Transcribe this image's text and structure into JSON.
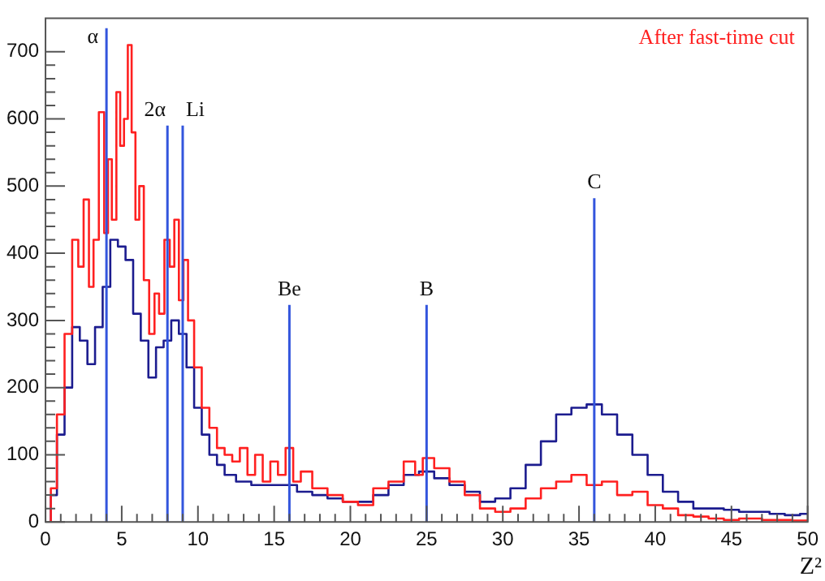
{
  "chart_data": {
    "type": "step",
    "xlabel": "Z²",
    "xlim": [
      0,
      50
    ],
    "xticks": [
      0,
      5,
      10,
      15,
      20,
      25,
      30,
      35,
      40,
      45,
      50
    ],
    "ylim": [
      0,
      750
    ],
    "yticks": [
      0,
      100,
      200,
      300,
      400,
      500,
      600,
      700
    ],
    "grid": false,
    "legend": "top right",
    "series": [
      {
        "color": "#1c1c8f",
        "x": [
          0.2,
          0.5,
          1,
          1.5,
          2,
          2.5,
          3,
          3.5,
          4,
          4.5,
          5,
          5.5,
          6,
          6.5,
          7,
          7.5,
          8,
          8.5,
          9,
          9.5,
          10,
          10.5,
          11,
          11.5,
          12,
          13,
          14,
          15,
          16,
          17,
          18,
          19,
          20,
          21,
          22,
          23,
          24,
          25,
          26,
          27,
          28,
          29,
          30,
          31,
          32,
          33,
          34,
          35,
          36,
          37,
          38,
          39,
          40,
          41,
          42,
          43,
          44,
          45,
          46,
          47,
          48,
          49,
          50
        ],
        "values": [
          0,
          40,
          130,
          200,
          290,
          270,
          235,
          290,
          350,
          420,
          410,
          390,
          310,
          270,
          215,
          260,
          270,
          300,
          280,
          230,
          170,
          130,
          100,
          85,
          70,
          60,
          55,
          55,
          55,
          45,
          40,
          35,
          30,
          30,
          40,
          55,
          70,
          75,
          65,
          55,
          45,
          30,
          35,
          50,
          85,
          120,
          160,
          170,
          175,
          160,
          130,
          100,
          70,
          45,
          30,
          20,
          20,
          18,
          15,
          15,
          12,
          10,
          12
        ]
      },
      {
        "name": "After fast-time cut",
        "color": "#ff2020",
        "x": [
          0.2,
          0.5,
          1,
          1.5,
          2,
          2.3,
          2.7,
          3,
          3.3,
          3.7,
          4,
          4.2,
          4.5,
          4.8,
          5,
          5.3,
          5.5,
          5.8,
          6,
          6.3,
          6.6,
          7,
          7.3,
          7.6,
          8,
          8.3,
          8.6,
          8.9,
          9.2,
          9.5,
          10,
          10.5,
          11,
          11.5,
          12,
          12.5,
          13,
          13.5,
          14,
          14.5,
          15,
          15.5,
          16,
          16.5,
          17,
          18,
          19,
          20,
          21,
          22,
          23,
          24,
          24.5,
          25,
          26,
          27,
          28,
          29,
          30,
          31,
          32,
          33,
          34,
          35,
          36,
          37,
          38,
          39,
          40,
          41,
          42,
          43,
          44,
          45,
          46,
          48,
          50
        ],
        "values": [
          0,
          50,
          160,
          280,
          420,
          380,
          480,
          350,
          420,
          610,
          430,
          540,
          450,
          640,
          560,
          600,
          710,
          580,
          450,
          500,
          360,
          280,
          340,
          310,
          420,
          380,
          450,
          330,
          390,
          300,
          230,
          170,
          140,
          110,
          100,
          90,
          110,
          70,
          100,
          60,
          90,
          70,
          110,
          60,
          75,
          50,
          40,
          30,
          25,
          50,
          60,
          90,
          70,
          95,
          80,
          60,
          40,
          20,
          15,
          20,
          35,
          50,
          60,
          70,
          55,
          60,
          40,
          45,
          25,
          20,
          10,
          8,
          5,
          3,
          5,
          3,
          2
        ]
      },
      {
        "type": "line",
        "color": "#3355dd",
        "x": [
          4,
          4
        ],
        "values": [
          0,
          735
        ]
      },
      {
        "type": "line",
        "color": "#3355dd",
        "x": [
          8,
          8
        ],
        "values": [
          0,
          590
        ]
      },
      {
        "type": "line",
        "color": "#3355dd",
        "x": [
          9,
          9
        ],
        "values": [
          0,
          590
        ]
      },
      {
        "type": "line",
        "color": "#3355dd",
        "x": [
          16,
          16
        ],
        "values": [
          0,
          323
        ]
      },
      {
        "type": "line",
        "color": "#3355dd",
        "x": [
          25,
          25
        ],
        "values": [
          0,
          323
        ]
      },
      {
        "type": "line",
        "color": "#3355dd",
        "x": [
          36,
          36
        ],
        "values": [
          0,
          482
        ]
      }
    ],
    "annotations": [
      {
        "text": "α",
        "x": 4,
        "y": 735
      },
      {
        "text": "2α",
        "x": 8,
        "y": 590
      },
      {
        "text": "Li",
        "x": 9,
        "y": 590
      },
      {
        "text": "Be",
        "x": 16,
        "y": 323
      },
      {
        "text": "B",
        "x": 25,
        "y": 323
      },
      {
        "text": "C",
        "x": 36,
        "y": 482
      }
    ]
  }
}
